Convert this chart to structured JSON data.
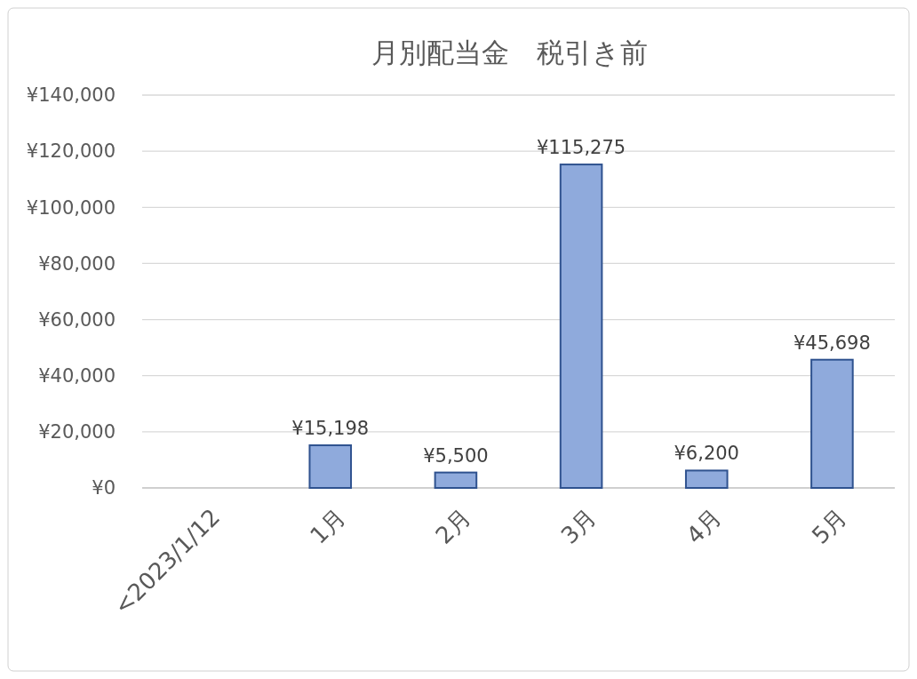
{
  "chart_data": {
    "type": "bar",
    "title": "月別配当金　税引き前",
    "categories": [
      "<2023/1/12",
      "1月",
      "2月",
      "3月",
      "4月",
      "5月"
    ],
    "values": [
      null,
      15198,
      5500,
      115275,
      6200,
      45698
    ],
    "value_labels": [
      null,
      "¥15,198",
      "¥5,500",
      "¥115,275",
      "¥6,200",
      "¥45,698"
    ],
    "color": "#8faadc",
    "ylim": [
      0,
      140000
    ],
    "yticks": [
      {
        "value": 0,
        "label": "¥0"
      },
      {
        "value": 20000,
        "label": "¥20,000"
      },
      {
        "value": 40000,
        "label": "¥40,000"
      },
      {
        "value": 60000,
        "label": "¥60,000"
      },
      {
        "value": 80000,
        "label": "¥80,000"
      },
      {
        "value": 100000,
        "label": "¥100,000"
      },
      {
        "value": 120000,
        "label": "¥120,000"
      },
      {
        "value": 140000,
        "label": "¥140,000"
      }
    ],
    "grid": "y"
  }
}
